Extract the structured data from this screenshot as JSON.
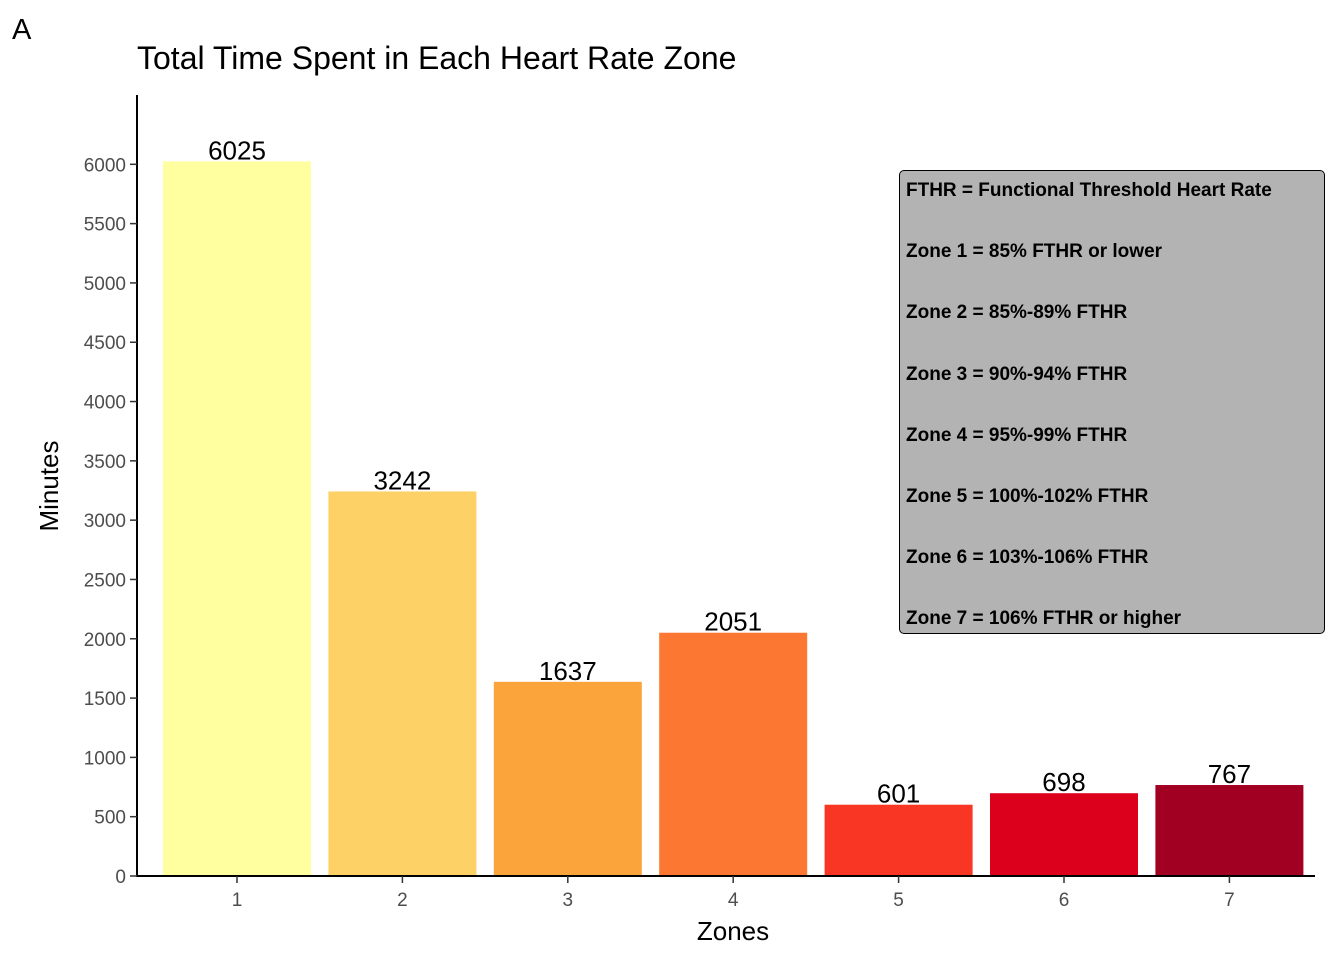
{
  "panel_tag": "A",
  "chart_data": {
    "type": "bar",
    "title": "Total Time Spent in Each Heart Rate Zone",
    "xlabel": "Zones",
    "ylabel": "Minutes",
    "categories": [
      "1",
      "2",
      "3",
      "4",
      "5",
      "6",
      "7"
    ],
    "values": [
      6025,
      3242,
      1637,
      2051,
      601,
      698,
      767
    ],
    "data_labels": [
      "6025",
      "3242",
      "1637",
      "2051",
      "601",
      "698",
      "767"
    ],
    "colors": [
      "#FFFFA0",
      "#FED166",
      "#FCA43C",
      "#FC7832",
      "#F93623",
      "#DC001C",
      "#A10023"
    ],
    "ylim": [
      0,
      6500
    ],
    "yticks": [
      0,
      500,
      1000,
      1500,
      2000,
      2500,
      3000,
      3500,
      4000,
      4500,
      5000,
      5500,
      6000
    ],
    "grid": false,
    "legend": "none"
  },
  "annotation_box": {
    "placement": "top-right",
    "background": "#b3b3b3",
    "lines": [
      "FTHR = Functional Threshold Heart Rate",
      "Zone 1 = 85% FTHR or lower",
      "Zone 2 = 85%-89% FTHR",
      "Zone 3 = 90%-94% FTHR",
      "Zone 4 = 95%-99% FTHR",
      "Zone 5 = 100%-102% FTHR",
      "Zone 6 = 103%-106% FTHR",
      "Zone 7 = 106% FTHR or higher"
    ]
  }
}
